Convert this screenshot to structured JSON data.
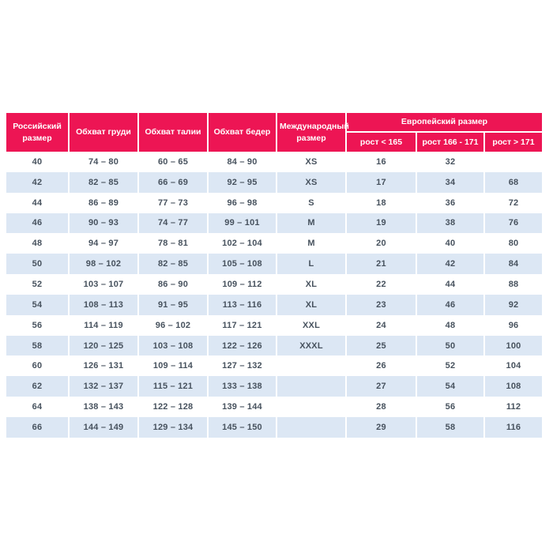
{
  "chart_data": {
    "type": "table",
    "headers": {
      "russian_size": "Российский размер",
      "chest": "Обхват груди",
      "waist": "Обхват талии",
      "hips": "Обхват бедер",
      "international_size": "Международный размер",
      "european_size_group": "Европейский размер",
      "height_under_165": "рост < 165",
      "height_166_171": "рост 166 - 171",
      "height_over_171": "рост > 171"
    },
    "rows": [
      [
        "40",
        "74 – 80",
        "60 – 65",
        "84 – 90",
        "XS",
        "16",
        "32",
        ""
      ],
      [
        "42",
        "82 – 85",
        "66 – 69",
        "92 – 95",
        "XS",
        "17",
        "34",
        "68"
      ],
      [
        "44",
        "86 – 89",
        "77 – 73",
        "96 – 98",
        "S",
        "18",
        "36",
        "72"
      ],
      [
        "46",
        "90 – 93",
        "74 – 77",
        "99 – 101",
        "M",
        "19",
        "38",
        "76"
      ],
      [
        "48",
        "94 – 97",
        "78 – 81",
        "102 – 104",
        "M",
        "20",
        "40",
        "80"
      ],
      [
        "50",
        "98 – 102",
        "82 – 85",
        "105 – 108",
        "L",
        "21",
        "42",
        "84"
      ],
      [
        "52",
        "103 – 107",
        "86 – 90",
        "109 – 112",
        "XL",
        "22",
        "44",
        "88"
      ],
      [
        "54",
        "108 – 113",
        "91 – 95",
        "113 – 116",
        "XL",
        "23",
        "46",
        "92"
      ],
      [
        "56",
        "114 – 119",
        "96 – 102",
        "117 – 121",
        "XXL",
        "24",
        "48",
        "96"
      ],
      [
        "58",
        "120 – 125",
        "103 – 108",
        "122 – 126",
        "XXXL",
        "25",
        "50",
        "100"
      ],
      [
        "60",
        "126 – 131",
        "109 – 114",
        "127 – 132",
        "",
        "26",
        "52",
        "104"
      ],
      [
        "62",
        "132 – 137",
        "115 – 121",
        "133 – 138",
        "",
        "27",
        "54",
        "108"
      ],
      [
        "64",
        "138 – 143",
        "122 – 128",
        "139 – 144",
        "",
        "28",
        "56",
        "112"
      ],
      [
        "66",
        "144 – 149",
        "129 – 134",
        "145 – 150",
        "",
        "29",
        "58",
        "116"
      ]
    ]
  },
  "colors": {
    "page_bg": "#ffffff",
    "header_bg": "#ed1554",
    "header_text": "#ffffff",
    "row_bg": "#ffffff",
    "row_alt_bg": "#dce7f4",
    "cell_text": "#47525e"
  }
}
